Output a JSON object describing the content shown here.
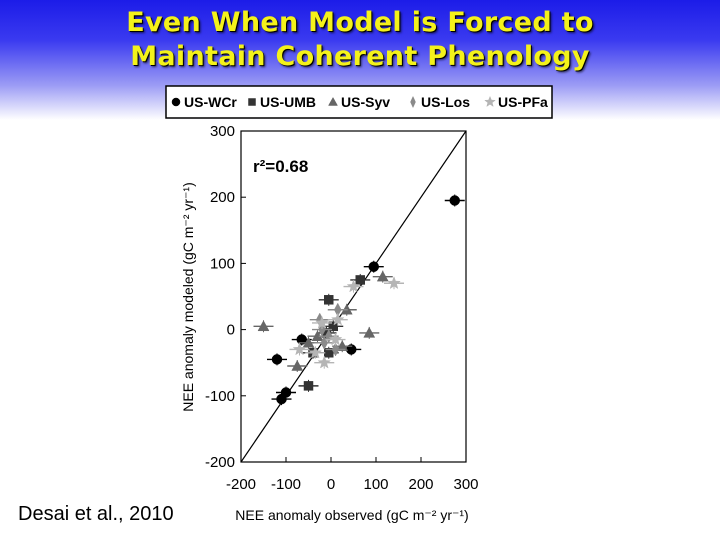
{
  "slide": {
    "title_line1": "Even When Model is Forced to",
    "title_line2": "Maintain Coherent Phenology",
    "citation": "Desai et al., 2010",
    "title_color": "#f4f21a"
  },
  "chart_data": {
    "type": "scatter",
    "xlabel": "NEE anomaly observed (gC m⁻² yr⁻¹)",
    "ylabel": "NEE anomaly modeled (gC m⁻² yr⁻¹)",
    "xlim": [
      -200,
      300
    ],
    "ylim": [
      -200,
      300
    ],
    "xticks": [
      -200,
      -100,
      0,
      100,
      200,
      300
    ],
    "yticks": [
      -200,
      -100,
      0,
      100,
      200,
      300
    ],
    "annotation": "r²=0.68",
    "reference_line": "1:1",
    "legend_position": "top",
    "series": [
      {
        "name": "US-WCr",
        "marker": "circle",
        "color": "#000000",
        "points": [
          [
            -120,
            -45
          ],
          [
            -100,
            -95
          ],
          [
            -110,
            -105
          ],
          [
            -65,
            -15
          ],
          [
            45,
            -30
          ],
          [
            95,
            95
          ],
          [
            275,
            195
          ]
        ]
      },
      {
        "name": "US-UMB",
        "marker": "square",
        "color": "#333333",
        "points": [
          [
            -40,
            -35
          ],
          [
            -10,
            -5
          ],
          [
            -5,
            -35
          ],
          [
            -50,
            -85
          ],
          [
            -5,
            45
          ],
          [
            65,
            75
          ],
          [
            5,
            5
          ]
        ]
      },
      {
        "name": "US-Syv",
        "marker": "triangle",
        "color": "#666666",
        "points": [
          [
            -150,
            5
          ],
          [
            -75,
            -55
          ],
          [
            -50,
            -20
          ],
          [
            25,
            -25
          ],
          [
            85,
            -5
          ],
          [
            115,
            80
          ],
          [
            35,
            30
          ],
          [
            -30,
            -10
          ]
        ]
      },
      {
        "name": "US-Los",
        "marker": "diamond",
        "color": "#8a8a8a",
        "points": [
          [
            -20,
            0
          ],
          [
            -15,
            -20
          ],
          [
            10,
            -30
          ],
          [
            15,
            30
          ],
          [
            -25,
            15
          ],
          [
            -5,
            -10
          ]
        ]
      },
      {
        "name": "US-PFa",
        "marker": "star",
        "color": "#b5b5b5",
        "points": [
          [
            -70,
            -30
          ],
          [
            -15,
            -50
          ],
          [
            10,
            -15
          ],
          [
            140,
            70
          ],
          [
            50,
            65
          ],
          [
            -35,
            -35
          ],
          [
            -20,
            10
          ],
          [
            15,
            15
          ]
        ]
      }
    ]
  }
}
